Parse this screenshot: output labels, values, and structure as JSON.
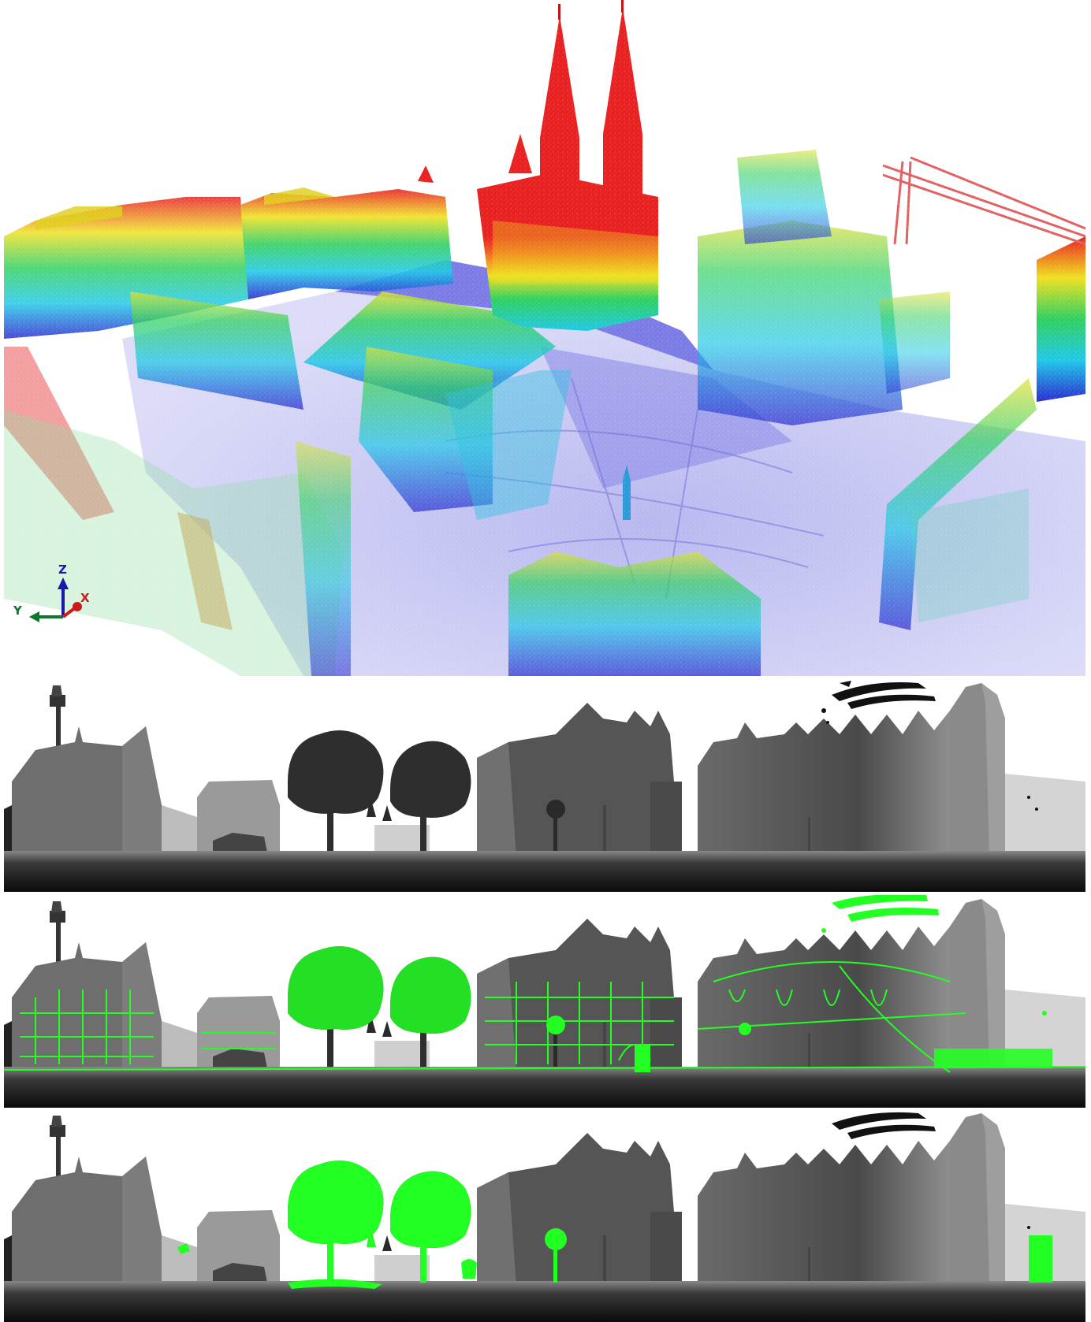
{
  "axis_triad": {
    "z_label": "Z",
    "y_label": "Y",
    "x_label": "X",
    "z_color": "#1a1aa8",
    "y_color": "#0a7a2a",
    "x_color": "#cc1a1a"
  },
  "palette": {
    "ground": "#7a7ae6",
    "low": "#2a2ad0",
    "mid_low": "#20c8e8",
    "mid": "#30d060",
    "mid_high": "#f0e020",
    "high": "#e82020",
    "highlight_green": "#22ff22"
  }
}
